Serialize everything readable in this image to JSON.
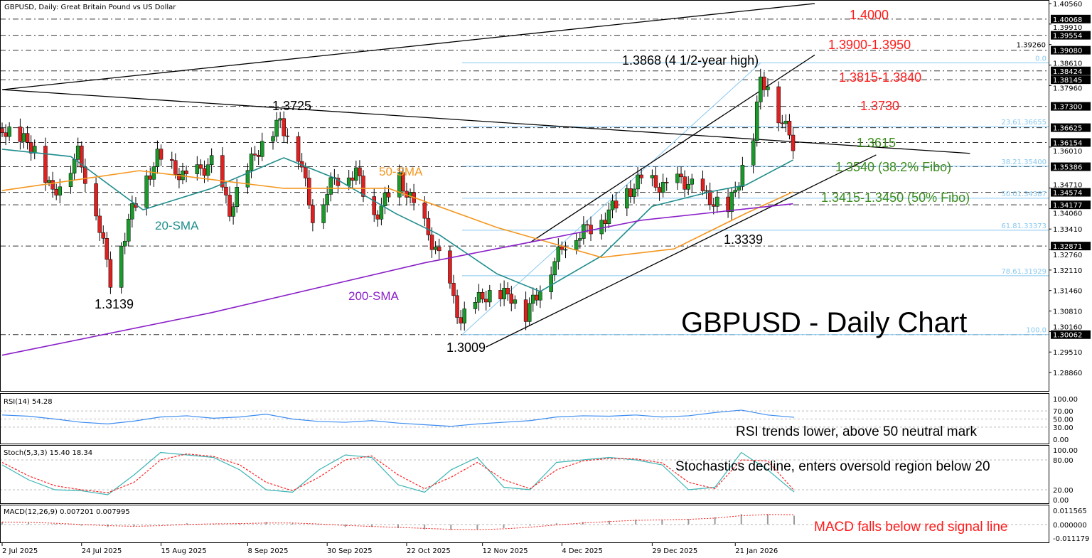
{
  "title": "GBPUSD, Daily:  Great Britain Pound vs US Dollar",
  "colors": {
    "bull": "#1a9a2a",
    "bear": "#e02020",
    "sma20": "#1f8c8c",
    "sma50": "#f5961e",
    "sma200": "#8a1fc8",
    "fib": "#87c8f0",
    "rsi": "#3c8cf0",
    "stochK": "#3cb4b4",
    "stochD": "#ff2020",
    "red_text": "#ff1a1a",
    "green_text": "#3c8c1e"
  },
  "chart_data": {
    "type": "candlestick",
    "title": "GBPUSD - Daily Chart",
    "ylim": [
      1.2886,
      1.4056
    ],
    "x_ticks": [
      "2 Jul 2025",
      "24 Jul 2025",
      "15 Aug 2025",
      "8 Sep 2025",
      "30 Sep 2025",
      "22 Oct 2025",
      "12 Nov 2025",
      "4 Dec 2025",
      "29 Dec 2025",
      "21 Jan 2026"
    ],
    "y_ticks": [
      "1.40560",
      "1.39910",
      "1.39260",
      "1.38610",
      "1.37960",
      "1.36010",
      "1.34710",
      "1.34060",
      "1.33410",
      "1.32760",
      "1.32110",
      "1.31460",
      "1.30810",
      "1.30160",
      "1.29510",
      "1.28860"
    ],
    "price_levels": [
      "1.40068",
      "1.39554",
      "1.39080",
      "1.38424",
      "1.38145",
      "1.37300",
      "1.36625",
      "1.36154",
      "1.35386",
      "1.34574",
      "1.34177",
      "1.32871",
      "1.30062"
    ],
    "close_path": [
      [
        "2025-07-02",
        1.366
      ],
      [
        "2025-07-11",
        1.36
      ],
      [
        "2025-07-16",
        1.345
      ],
      [
        "2025-07-23",
        1.358
      ],
      [
        "2025-07-28",
        1.34
      ],
      [
        "2025-08-01",
        1.318
      ],
      [
        "2025-08-07",
        1.34
      ],
      [
        "2025-08-14",
        1.357
      ],
      [
        "2025-08-22",
        1.35
      ],
      [
        "2025-08-29",
        1.355
      ],
      [
        "2025-09-03",
        1.34
      ],
      [
        "2025-09-10",
        1.358
      ],
      [
        "2025-09-17",
        1.368
      ],
      [
        "2025-09-22",
        1.358
      ],
      [
        "2025-09-26",
        1.338
      ],
      [
        "2025-10-02",
        1.35
      ],
      [
        "2025-10-08",
        1.352
      ],
      [
        "2025-10-13",
        1.338
      ],
      [
        "2025-10-20",
        1.35
      ],
      [
        "2025-10-27",
        1.335
      ],
      [
        "2025-10-31",
        1.325
      ],
      [
        "2025-11-06",
        1.305
      ],
      [
        "2025-11-12",
        1.313
      ],
      [
        "2025-11-20",
        1.313
      ],
      [
        "2025-11-24",
        1.307
      ],
      [
        "2025-12-01",
        1.322
      ],
      [
        "2025-12-05",
        1.33
      ],
      [
        "2025-12-15",
        1.337
      ],
      [
        "2025-12-19",
        1.342
      ],
      [
        "2025-12-26",
        1.35
      ],
      [
        "2026-01-02",
        1.347
      ],
      [
        "2026-01-06",
        1.35
      ],
      [
        "2026-01-12",
        1.345
      ],
      [
        "2026-01-19",
        1.34
      ],
      [
        "2026-01-22",
        1.35
      ],
      [
        "2026-01-26",
        1.364
      ],
      [
        "2026-01-28",
        1.381
      ],
      [
        "2026-01-30",
        1.38
      ],
      [
        "2026-02-03",
        1.367
      ],
      [
        "2026-02-05",
        1.365
      ],
      [
        "2026-02-06",
        1.361
      ]
    ],
    "series": [
      {
        "name": "20-SMA",
        "points": [
          [
            "2025-07-02",
            1.3594
          ],
          [
            "2025-07-21",
            1.3571
          ],
          [
            "2025-08-10",
            1.3402
          ],
          [
            "2025-08-29",
            1.347
          ],
          [
            "2025-09-18",
            1.3567
          ],
          [
            "2025-10-02",
            1.3503
          ],
          [
            "2025-10-19",
            1.339
          ],
          [
            "2025-10-31",
            1.3323
          ],
          [
            "2025-11-16",
            1.3199
          ],
          [
            "2025-11-28",
            1.3143
          ],
          [
            "2025-12-15",
            1.3256
          ],
          [
            "2025-12-29",
            1.3413
          ],
          [
            "2026-01-14",
            1.3459
          ],
          [
            "2026-01-24",
            1.3481
          ],
          [
            "2026-02-06",
            1.356
          ]
        ]
      },
      {
        "name": "50-SMA",
        "points": [
          [
            "2025-07-02",
            1.3463
          ],
          [
            "2025-08-09",
            1.3526
          ],
          [
            "2025-09-18",
            1.347
          ],
          [
            "2025-10-17",
            1.347
          ],
          [
            "2025-11-16",
            1.3346
          ],
          [
            "2025-12-15",
            1.3251
          ],
          [
            "2026-01-04",
            1.3278
          ],
          [
            "2026-01-24",
            1.3391
          ],
          [
            "2026-02-06",
            1.3459
          ]
        ]
      },
      {
        "name": "200-SMA",
        "points": [
          [
            "2025-07-02",
            1.2941
          ],
          [
            "2025-08-29",
            1.3076
          ],
          [
            "2025-10-27",
            1.3234
          ],
          [
            "2025-11-26",
            1.3301
          ],
          [
            "2025-12-26",
            1.3369
          ],
          [
            "2026-02-06",
            1.3421
          ]
        ]
      }
    ],
    "fibonacci": [
      {
        "label": "0.0",
        "value": 1.3868
      },
      {
        "label": "23.61.36655",
        "value": 1.36655
      },
      {
        "label": "38.21.35400",
        "value": 1.354
      },
      {
        "label": "50.01.34387",
        "value": 1.34387
      },
      {
        "label": "61.81.33373",
        "value": 1.33373
      },
      {
        "label": "78.61.31929",
        "value": 1.31929
      },
      {
        "label": "100.0",
        "value": 1.30062
      }
    ],
    "trendlines": [
      [
        [
          "2025-07-02",
          1.3783
        ],
        [
          "2026-02-12",
          1.4056
        ]
      ],
      [
        [
          "2025-07-02",
          1.3783
        ],
        [
          "2026-03-27",
          1.3581
        ]
      ],
      [
        [
          "2025-11-25",
          1.3297
        ],
        [
          "2026-02-12",
          1.3893
        ]
      ],
      [
        [
          "2025-11-13",
          1.2967
        ],
        [
          "2026-03-01",
          1.3576
        ]
      ]
    ],
    "annotations": {
      "high": "1.3868 (4 1/2-year high)",
      "p1": "1.3725",
      "p2": "1.3139",
      "p3": "1.3009",
      "p4": "1.3339",
      "sma50": "50-SMA",
      "sma20": "20-SMA",
      "sma200": "200-SMA"
    },
    "levels_text": {
      "r1": "1.4000",
      "r2": "1.3900-1.3950",
      "r3": "1.3815-1.3840",
      "r4": "1.3730",
      "s1": "1.3615",
      "s2": "1.3540 (38.2% Fibo)",
      "s3": "1.3415-1.3450 (50% Fibo)"
    },
    "rsi": {
      "label": "RSI(14) 54.28",
      "ticks": [
        "100.00",
        "70.00",
        "50.00",
        "30.00",
        "0.00"
      ],
      "note": "RSI trends lower, above 50 neutral mark",
      "values": [
        60,
        57,
        50,
        42,
        38,
        45,
        55,
        58,
        52,
        55,
        62,
        50,
        44,
        42,
        46,
        40,
        36,
        32,
        38,
        42,
        46,
        55,
        58,
        57,
        60,
        55,
        58,
        66,
        72,
        60,
        54.28
      ]
    },
    "stoch": {
      "label": "Stoch(5,3,3) 15.40 18.34",
      "ticks": [
        "100.00",
        "80.00",
        "20.00",
        "0.00"
      ],
      "note": "Stochastics decline, enters oversold region below 20",
      "k": [
        70,
        40,
        20,
        18,
        10,
        50,
        95,
        90,
        85,
        60,
        20,
        15,
        60,
        90,
        85,
        30,
        15,
        60,
        85,
        25,
        20,
        75,
        80,
        85,
        80,
        70,
        20,
        25,
        95,
        60,
        15.4
      ],
      "d": [
        75,
        48,
        28,
        20,
        14,
        35,
        80,
        92,
        87,
        70,
        35,
        18,
        45,
        80,
        88,
        50,
        22,
        45,
        75,
        40,
        22,
        60,
        78,
        83,
        82,
        74,
        35,
        22,
        80,
        78,
        18.34
      ]
    },
    "macd": {
      "label": "MACD(12,26,9) 0.007201 0.007995",
      "ticks": [
        "0.011565",
        "0.000000",
        "-0.011179"
      ],
      "note": "MACD falls below red signal line",
      "hist": [
        0.002,
        0.0015,
        0.0005,
        -0.001,
        -0.002,
        -0.0015,
        0.0,
        0.001,
        0.0005,
        0.0008,
        0.002,
        0.001,
        -0.0005,
        -0.002,
        -0.002,
        -0.003,
        -0.004,
        -0.0045,
        -0.004,
        -0.003,
        -0.001,
        0.001,
        0.002,
        0.003,
        0.004,
        0.004,
        0.0045,
        0.006,
        0.0085,
        0.0085,
        0.0072
      ],
      "signal": [
        0.002,
        0.0018,
        0.001,
        0.0,
        -0.001,
        -0.0015,
        -0.001,
        0.0,
        0.0005,
        0.0007,
        0.0012,
        0.0012,
        0.0004,
        -0.0008,
        -0.0016,
        -0.0024,
        -0.0032,
        -0.004,
        -0.0042,
        -0.0036,
        -0.0022,
        -0.0004,
        0.0012,
        0.0024,
        0.0034,
        0.0038,
        0.0042,
        0.0052,
        0.0072,
        0.0082,
        0.008
      ]
    }
  }
}
